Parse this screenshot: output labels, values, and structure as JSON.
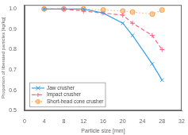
{
  "chart_data": {
    "type": "line",
    "xlabel": "Particle size [mm]",
    "ylabel": "Proportion of liberated particles [kg/kg]",
    "xlim": [
      0,
      32
    ],
    "ylim": [
      0.5,
      1.02
    ],
    "xticks": [
      0,
      4,
      8,
      12,
      16,
      20,
      24,
      28,
      32
    ],
    "yticks": [
      0.5,
      0.6,
      0.7,
      0.8,
      0.9,
      {
        "value": 1.0,
        "label": "1.0"
      }
    ],
    "grid": false,
    "legend": "lower left",
    "x": [
      4,
      8,
      12,
      16,
      20,
      22,
      26,
      28
    ],
    "series": [
      {
        "name": "Jaw crusher",
        "values": [
          1.0,
          1.0,
          1.0,
          0.98,
          0.93,
          0.87,
          0.73,
          0.65
        ],
        "marker": "x",
        "line_style": "solid"
      },
      {
        "name": "Impact crusher",
        "values": [
          1.0,
          1.0,
          0.99,
          0.98,
          0.97,
          0.93,
          0.87,
          0.8
        ],
        "marker": "plus",
        "line_style": "dashed"
      },
      {
        "name": "Short-head cone crusher",
        "values": [
          1.0,
          1.0,
          1.0,
          0.995,
          0.99,
          0.985,
          0.975,
          0.995
        ],
        "marker": "circle",
        "line_style": "dotted"
      }
    ]
  }
}
